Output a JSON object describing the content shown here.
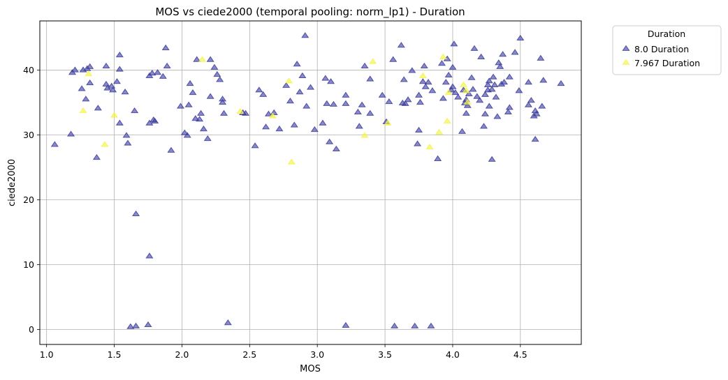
{
  "chart_data": {
    "type": "scatter",
    "title": "MOS vs ciede2000 (temporal pooling: norm_lp1) - Duration",
    "xlabel": "MOS",
    "ylabel": "ciede2000",
    "xlim": [
      0.95,
      4.95
    ],
    "ylim": [
      -2.3,
      47.6
    ],
    "xticks": [
      1.0,
      1.5,
      2.0,
      2.5,
      3.0,
      3.5,
      4.0,
      4.5
    ],
    "xtick_labels": [
      "1.0",
      "1.5",
      "2.0",
      "2.5",
      "3.0",
      "3.5",
      "4.0",
      "4.5"
    ],
    "yticks": [
      0,
      10,
      20,
      30,
      40
    ],
    "ytick_labels": [
      "0",
      "10",
      "20",
      "30",
      "40"
    ],
    "grid": true,
    "marker": "triangle",
    "legend": {
      "title": "Duration",
      "placement": "outside-top-right"
    },
    "series": [
      {
        "name": "8.0 Duration",
        "color": "#3b3b9e",
        "points": [
          [
            1.06,
            28.5
          ],
          [
            1.18,
            30.1
          ],
          [
            1.19,
            39.6
          ],
          [
            1.21,
            40.0
          ],
          [
            1.26,
            37.1
          ],
          [
            1.27,
            40.0
          ],
          [
            1.29,
            35.5
          ],
          [
            1.3,
            40.2
          ],
          [
            1.32,
            38.0
          ],
          [
            1.32,
            40.5
          ],
          [
            1.37,
            26.5
          ],
          [
            1.38,
            34.1
          ],
          [
            1.44,
            37.8
          ],
          [
            1.44,
            40.6
          ],
          [
            1.45,
            37.2
          ],
          [
            1.48,
            37.5
          ],
          [
            1.49,
            36.9
          ],
          [
            1.52,
            38.2
          ],
          [
            1.54,
            42.3
          ],
          [
            1.54,
            40.1
          ],
          [
            1.54,
            31.8
          ],
          [
            1.58,
            36.6
          ],
          [
            1.59,
            29.9
          ],
          [
            1.6,
            28.7
          ],
          [
            1.62,
            0.4
          ],
          [
            1.65,
            33.7
          ],
          [
            1.66,
            17.8
          ],
          [
            1.66,
            0.5
          ],
          [
            1.75,
            0.7
          ],
          [
            1.76,
            11.3
          ],
          [
            1.76,
            39.1
          ],
          [
            1.76,
            31.8
          ],
          [
            1.78,
            39.5
          ],
          [
            1.79,
            32.3
          ],
          [
            1.8,
            32.1
          ],
          [
            1.82,
            39.6
          ],
          [
            1.86,
            39.0
          ],
          [
            1.88,
            43.4
          ],
          [
            1.89,
            40.6
          ],
          [
            1.92,
            27.6
          ],
          [
            1.99,
            34.4
          ],
          [
            2.02,
            30.3
          ],
          [
            2.04,
            29.9
          ],
          [
            2.05,
            34.6
          ],
          [
            2.06,
            37.9
          ],
          [
            2.08,
            36.5
          ],
          [
            2.1,
            32.5
          ],
          [
            2.11,
            41.6
          ],
          [
            2.13,
            32.4
          ],
          [
            2.14,
            33.3
          ],
          [
            2.16,
            30.9
          ],
          [
            2.19,
            29.4
          ],
          [
            2.21,
            41.6
          ],
          [
            2.21,
            35.9
          ],
          [
            2.24,
            40.4
          ],
          [
            2.26,
            39.3
          ],
          [
            2.28,
            38.5
          ],
          [
            2.3,
            35.5
          ],
          [
            2.3,
            35.0
          ],
          [
            2.31,
            33.3
          ],
          [
            2.34,
            1.0
          ],
          [
            2.45,
            33.4
          ],
          [
            2.47,
            33.3
          ],
          [
            2.54,
            28.3
          ],
          [
            2.57,
            36.9
          ],
          [
            2.6,
            36.2
          ],
          [
            2.62,
            31.2
          ],
          [
            2.64,
            33.2
          ],
          [
            2.68,
            33.4
          ],
          [
            2.72,
            30.9
          ],
          [
            2.77,
            37.6
          ],
          [
            2.8,
            35.2
          ],
          [
            2.83,
            31.5
          ],
          [
            2.85,
            40.9
          ],
          [
            2.87,
            36.6
          ],
          [
            2.89,
            39.1
          ],
          [
            2.91,
            45.3
          ],
          [
            2.92,
            34.4
          ],
          [
            2.95,
            37.3
          ],
          [
            2.98,
            30.8
          ],
          [
            3.04,
            31.8
          ],
          [
            3.06,
            38.7
          ],
          [
            3.07,
            34.8
          ],
          [
            3.09,
            28.9
          ],
          [
            3.1,
            38.2
          ],
          [
            3.12,
            34.7
          ],
          [
            3.14,
            27.8
          ],
          [
            3.21,
            36.1
          ],
          [
            3.21,
            34.8
          ],
          [
            3.21,
            0.6
          ],
          [
            3.3,
            33.5
          ],
          [
            3.31,
            31.3
          ],
          [
            3.33,
            34.6
          ],
          [
            3.35,
            40.6
          ],
          [
            3.39,
            38.6
          ],
          [
            3.39,
            33.3
          ],
          [
            3.48,
            36.1
          ],
          [
            3.51,
            32.0
          ],
          [
            3.53,
            35.1
          ],
          [
            3.56,
            41.6
          ],
          [
            3.57,
            0.5
          ],
          [
            3.62,
            43.8
          ],
          [
            3.63,
            34.9
          ],
          [
            3.64,
            38.5
          ],
          [
            3.65,
            34.8
          ],
          [
            3.67,
            35.4
          ],
          [
            3.7,
            39.9
          ],
          [
            3.72,
            0.5
          ],
          [
            3.74,
            28.6
          ],
          [
            3.75,
            36.1
          ],
          [
            3.76,
            35.0
          ],
          [
            3.78,
            38.2
          ],
          [
            3.79,
            40.6
          ],
          [
            3.8,
            37.4
          ],
          [
            3.82,
            38.1
          ],
          [
            3.84,
            0.5
          ],
          [
            3.85,
            36.8
          ],
          [
            3.89,
            26.3
          ],
          [
            3.92,
            41.0
          ],
          [
            3.93,
            35.6
          ],
          [
            3.95,
            38.1
          ],
          [
            3.96,
            41.7
          ],
          [
            3.97,
            39.2
          ],
          [
            3.99,
            36.9
          ],
          [
            4.0,
            37.4
          ],
          [
            4.01,
            44.0
          ],
          [
            4.02,
            36.5
          ],
          [
            4.04,
            35.8
          ],
          [
            4.07,
            30.5
          ],
          [
            4.08,
            36.9
          ],
          [
            4.09,
            34.9
          ],
          [
            4.1,
            33.3
          ],
          [
            4.1,
            35.4
          ],
          [
            4.11,
            34.5
          ],
          [
            4.12,
            36.3
          ],
          [
            4.14,
            38.8
          ],
          [
            4.15,
            37.0
          ],
          [
            4.16,
            43.3
          ],
          [
            4.18,
            35.9
          ],
          [
            4.2,
            35.3
          ],
          [
            4.21,
            42.0
          ],
          [
            4.23,
            31.3
          ],
          [
            4.24,
            36.2
          ],
          [
            4.24,
            33.2
          ],
          [
            4.26,
            37.7
          ],
          [
            4.26,
            36.9
          ],
          [
            4.27,
            38.3
          ],
          [
            4.27,
            34.4
          ],
          [
            4.29,
            26.2
          ],
          [
            4.29,
            37.0
          ],
          [
            4.3,
            38.9
          ],
          [
            4.31,
            37.7
          ],
          [
            4.32,
            35.8
          ],
          [
            4.33,
            32.8
          ],
          [
            4.34,
            41.1
          ],
          [
            4.35,
            40.5
          ],
          [
            4.36,
            37.8
          ],
          [
            4.37,
            42.4
          ],
          [
            4.38,
            38.1
          ],
          [
            4.41,
            33.5
          ],
          [
            4.42,
            34.2
          ],
          [
            4.42,
            38.9
          ],
          [
            4.46,
            42.7
          ],
          [
            4.49,
            36.8
          ],
          [
            4.5,
            44.9
          ],
          [
            4.56,
            38.1
          ],
          [
            4.56,
            34.6
          ],
          [
            4.58,
            35.3
          ],
          [
            4.6,
            32.9
          ],
          [
            4.61,
            29.3
          ],
          [
            4.61,
            33.7
          ],
          [
            4.62,
            33.2
          ],
          [
            4.65,
            41.8
          ],
          [
            4.66,
            34.4
          ],
          [
            4.67,
            38.4
          ],
          [
            4.8,
            37.9
          ],
          [
            4.0,
            40.4
          ],
          [
            3.75,
            30.7
          ]
        ]
      },
      {
        "name": "7.967 Duration",
        "color": "#f5f542",
        "points": [
          [
            1.27,
            33.7
          ],
          [
            1.31,
            39.4
          ],
          [
            1.43,
            28.5
          ],
          [
            1.5,
            33.0
          ],
          [
            2.15,
            41.6
          ],
          [
            2.43,
            33.6
          ],
          [
            2.67,
            32.9
          ],
          [
            2.79,
            38.3
          ],
          [
            2.81,
            25.8
          ],
          [
            3.35,
            29.9
          ],
          [
            3.41,
            41.3
          ],
          [
            3.52,
            31.8
          ],
          [
            3.78,
            39.1
          ],
          [
            3.83,
            28.1
          ],
          [
            3.9,
            30.4
          ],
          [
            3.93,
            42.0
          ],
          [
            3.96,
            32.1
          ],
          [
            3.97,
            36.5
          ],
          [
            4.08,
            37.7
          ],
          [
            4.1,
            36.8
          ],
          [
            4.11,
            35.0
          ]
        ]
      }
    ]
  }
}
